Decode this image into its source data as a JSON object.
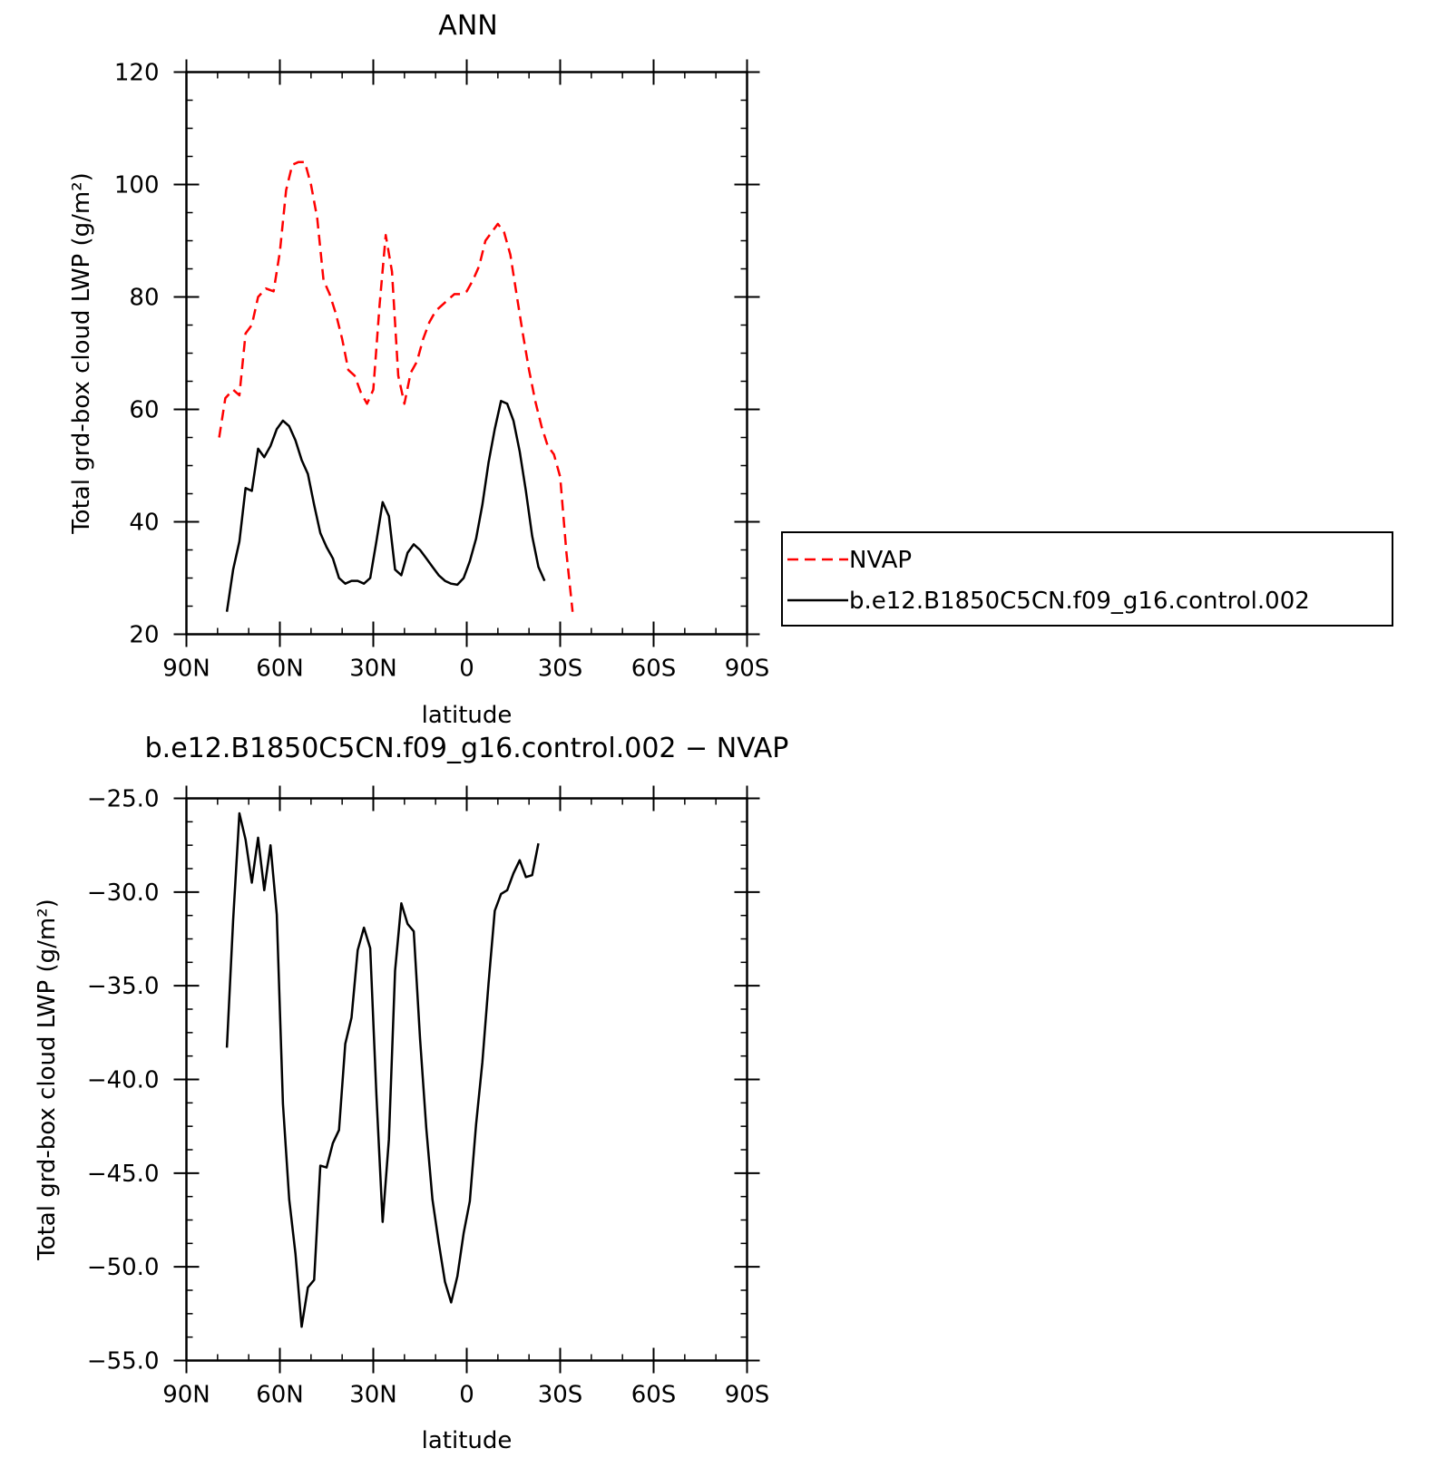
{
  "chart_data": [
    {
      "type": "line",
      "title": "ANN",
      "xlabel": "latitude",
      "ylabel": "Total grd-box cloud LWP (g/m²)",
      "xlim": [
        -90,
        90
      ],
      "ylim": [
        20,
        120
      ],
      "xticks": [
        -90,
        -60,
        -30,
        0,
        30,
        60,
        90
      ],
      "xtick_labels": [
        "90N",
        "60N",
        "30N",
        "0",
        "30S",
        "60S",
        "90S"
      ],
      "yticks": [
        20,
        40,
        60,
        80,
        100,
        120
      ],
      "ytick_labels": [
        "20",
        "40",
        "60",
        "80",
        "100",
        "120"
      ],
      "grid": false,
      "legend": "right",
      "series": [
        {
          "name": "NVAP",
          "color": "#ff0000",
          "dash": "dashed",
          "points": [
            [
              -79.5,
              55
            ],
            [
              -77.5,
              62
            ],
            [
              -75,
              63.5
            ],
            [
              -73,
              62.5
            ],
            [
              -71,
              73.5
            ],
            [
              -69,
              75
            ],
            [
              -67,
              80
            ],
            [
              -64.5,
              81.5
            ],
            [
              -62,
              81
            ],
            [
              -60,
              88
            ],
            [
              -58,
              99
            ],
            [
              -56,
              103.5
            ],
            [
              -54,
              104
            ],
            [
              -52,
              104
            ],
            [
              -50,
              100
            ],
            [
              -48,
              94
            ],
            [
              -46,
              83
            ],
            [
              -44,
              80.5
            ],
            [
              -42,
              77
            ],
            [
              -40,
              72.5
            ],
            [
              -38,
              67
            ],
            [
              -36,
              66
            ],
            [
              -34,
              63
            ],
            [
              -32,
              61
            ],
            [
              -30,
              63.5
            ],
            [
              -28,
              78.5
            ],
            [
              -26,
              91
            ],
            [
              -24,
              84.5
            ],
            [
              -22,
              66
            ],
            [
              -20,
              61
            ],
            [
              -18,
              66.5
            ],
            [
              -16,
              68.5
            ],
            [
              -14,
              72.5
            ],
            [
              -12,
              75.5
            ],
            [
              -10,
              77.5
            ],
            [
              -8,
              78.5
            ],
            [
              -6,
              79.5
            ],
            [
              -4,
              80.5
            ],
            [
              -2,
              80.5
            ],
            [
              0,
              81
            ],
            [
              2,
              83
            ],
            [
              4,
              85.5
            ],
            [
              6,
              90
            ],
            [
              8,
              91.5
            ],
            [
              10,
              93
            ],
            [
              12,
              91.5
            ],
            [
              14,
              87.5
            ],
            [
              16,
              80.5
            ],
            [
              18,
              73.5
            ],
            [
              20,
              67
            ],
            [
              22,
              61.5
            ],
            [
              24,
              57
            ],
            [
              26,
              53.5
            ],
            [
              28,
              52
            ],
            [
              30,
              48
            ],
            [
              32,
              34.5
            ],
            [
              34,
              24
            ]
          ]
        },
        {
          "name": "b.e12.B1850C5CN.f09_g16.control.002",
          "color": "#000000",
          "dash": "solid",
          "points": [
            [
              -77,
              24
            ],
            [
              -75,
              31.5
            ],
            [
              -73,
              36.5
            ],
            [
              -71,
              46
            ],
            [
              -69,
              45.5
            ],
            [
              -67,
              53
            ],
            [
              -65,
              51.5
            ],
            [
              -63,
              53.5
            ],
            [
              -61,
              56.5
            ],
            [
              -59,
              58
            ],
            [
              -57,
              57
            ],
            [
              -55,
              54.5
            ],
            [
              -53,
              51
            ],
            [
              -51,
              48.5
            ],
            [
              -49,
              43
            ],
            [
              -47,
              38
            ],
            [
              -45,
              35.5
            ],
            [
              -43,
              33.5
            ],
            [
              -41,
              30
            ],
            [
              -39,
              29
            ],
            [
              -37,
              29.5
            ],
            [
              -35,
              29.5
            ],
            [
              -33,
              29
            ],
            [
              -31,
              30
            ],
            [
              -29,
              36.5
            ],
            [
              -27,
              43.5
            ],
            [
              -25,
              41
            ],
            [
              -23,
              31.5
            ],
            [
              -21,
              30.5
            ],
            [
              -19,
              34.5
            ],
            [
              -17,
              36
            ],
            [
              -15,
              35
            ],
            [
              -13,
              33.5
            ],
            [
              -11,
              32
            ],
            [
              -9,
              30.5
            ],
            [
              -7,
              29.5
            ],
            [
              -5,
              29
            ],
            [
              -3,
              28.8
            ],
            [
              -1,
              30
            ],
            [
              1,
              33
            ],
            [
              3,
              37
            ],
            [
              5,
              43
            ],
            [
              7,
              50.5
            ],
            [
              9,
              56.5
            ],
            [
              11,
              61.5
            ],
            [
              13,
              61
            ],
            [
              15,
              58
            ],
            [
              17,
              52.5
            ],
            [
              19,
              45.5
            ],
            [
              21,
              37.5
            ],
            [
              23,
              32
            ],
            [
              25,
              29.5
            ]
          ]
        }
      ]
    },
    {
      "type": "line",
      "title": "b.e12.B1850C5CN.f09_g16.control.002 − NVAP",
      "xlabel": "latitude",
      "ylabel": "Total grd-box cloud LWP (g/m²)",
      "xlim": [
        -90,
        90
      ],
      "ylim": [
        -55,
        -25
      ],
      "xticks": [
        -90,
        -60,
        -30,
        0,
        30,
        60,
        90
      ],
      "xtick_labels": [
        "90N",
        "60N",
        "30N",
        "0",
        "30S",
        "60S",
        "90S"
      ],
      "yticks": [
        -55,
        -50,
        -45,
        -40,
        -35,
        -30,
        -25
      ],
      "ytick_labels": [
        "−55.0",
        "−50.0",
        "−45.0",
        "−40.0",
        "−35.0",
        "−30.0",
        "−25.0"
      ],
      "grid": false,
      "series": [
        {
          "name": "",
          "color": "#000000",
          "dash": "solid",
          "points": [
            [
              -77,
              -38.3
            ],
            [
              -75,
              -31.5
            ],
            [
              -73,
              -25.8
            ],
            [
              -71,
              -27.2
            ],
            [
              -69,
              -29.5
            ],
            [
              -67,
              -27.1
            ],
            [
              -65,
              -29.9
            ],
            [
              -63,
              -27.5
            ],
            [
              -61,
              -31.2
            ],
            [
              -59,
              -41.3
            ],
            [
              -57,
              -46.4
            ],
            [
              -55,
              -49.3
            ],
            [
              -53,
              -53.2
            ],
            [
              -51,
              -51.1
            ],
            [
              -49,
              -50.7
            ],
            [
              -47,
              -44.6
            ],
            [
              -45,
              -44.7
            ],
            [
              -43,
              -43.4
            ],
            [
              -41,
              -42.7
            ],
            [
              -39,
              -38.1
            ],
            [
              -37,
              -36.7
            ],
            [
              -35,
              -33.1
            ],
            [
              -33,
              -31.9
            ],
            [
              -31,
              -33.0
            ],
            [
              -29,
              -40.8
            ],
            [
              -27,
              -47.6
            ],
            [
              -25,
              -43.2
            ],
            [
              -23,
              -34.2
            ],
            [
              -21,
              -30.6
            ],
            [
              -19,
              -31.7
            ],
            [
              -17,
              -32.1
            ],
            [
              -15,
              -37.8
            ],
            [
              -13,
              -42.6
            ],
            [
              -11,
              -46.4
            ],
            [
              -9,
              -48.7
            ],
            [
              -7,
              -50.8
            ],
            [
              -5,
              -51.9
            ],
            [
              -3,
              -50.5
            ],
            [
              -1,
              -48.2
            ],
            [
              1,
              -46.5
            ],
            [
              3,
              -42.4
            ],
            [
              5,
              -39.1
            ],
            [
              7,
              -34.9
            ],
            [
              9,
              -31.0
            ],
            [
              11,
              -30.1
            ],
            [
              13,
              -29.9
            ],
            [
              15,
              -29.0
            ],
            [
              17,
              -28.3
            ],
            [
              19,
              -29.2
            ],
            [
              21,
              -29.1
            ],
            [
              23,
              -27.4
            ]
          ]
        }
      ]
    }
  ],
  "legend": {
    "items": [
      {
        "label": "NVAP",
        "color": "#ff0000",
        "dash": "dashed"
      },
      {
        "label": "b.e12.B1850C5CN.f09_g16.control.002",
        "color": "#000000",
        "dash": "solid"
      }
    ]
  }
}
